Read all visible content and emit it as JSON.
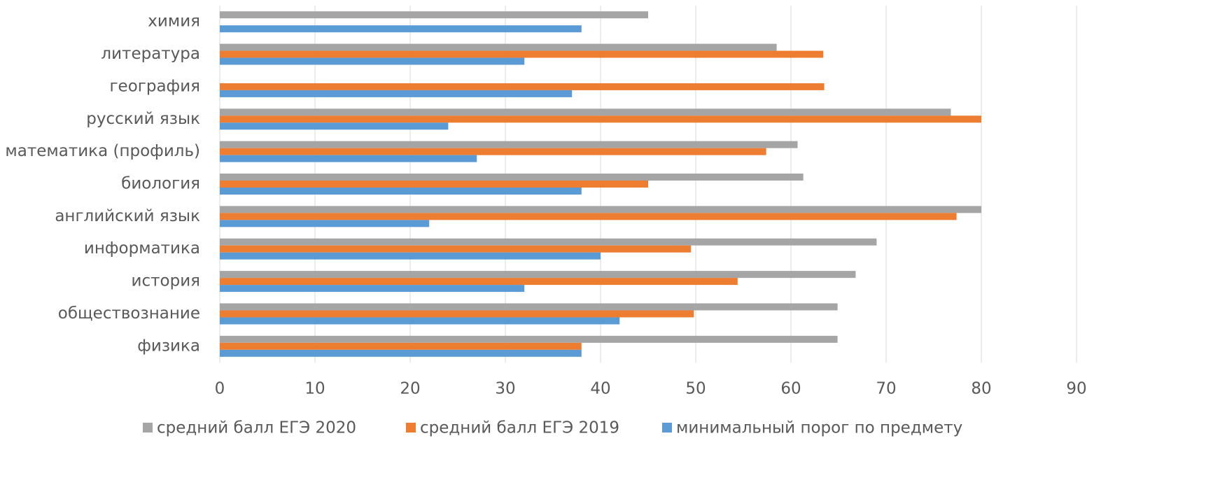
{
  "chart_data": {
    "type": "bar",
    "orientation": "horizontal",
    "categories": [
      "химия",
      "литература",
      "география",
      "русский язык",
      "математика (профиль)",
      "биология",
      "английский язык",
      "информатика",
      "история",
      "обществознание",
      "физика"
    ],
    "series": [
      {
        "name": "средний балл ЕГЭ 2020",
        "color": "#a5a5a5",
        "values": [
          45,
          58.5,
          null,
          76.8,
          60.7,
          61.3,
          80,
          69,
          66.8,
          64.9,
          64.9
        ]
      },
      {
        "name": "средний балл ЕГЭ 2019",
        "color": "#ed7d31",
        "values": [
          null,
          63.4,
          63.5,
          80,
          57.4,
          45,
          77.4,
          49.5,
          54.4,
          49.8,
          38
        ]
      },
      {
        "name": "минимальный порог по предмету",
        "color": "#5b9bd5",
        "values": [
          38,
          32,
          37,
          24,
          27,
          38,
          22,
          40,
          32,
          42,
          38
        ]
      }
    ],
    "xlim": [
      0,
      90
    ],
    "xticks": [
      0,
      10,
      20,
      30,
      40,
      50,
      60,
      70,
      80,
      90
    ],
    "grid": true,
    "legend": "bottom"
  }
}
